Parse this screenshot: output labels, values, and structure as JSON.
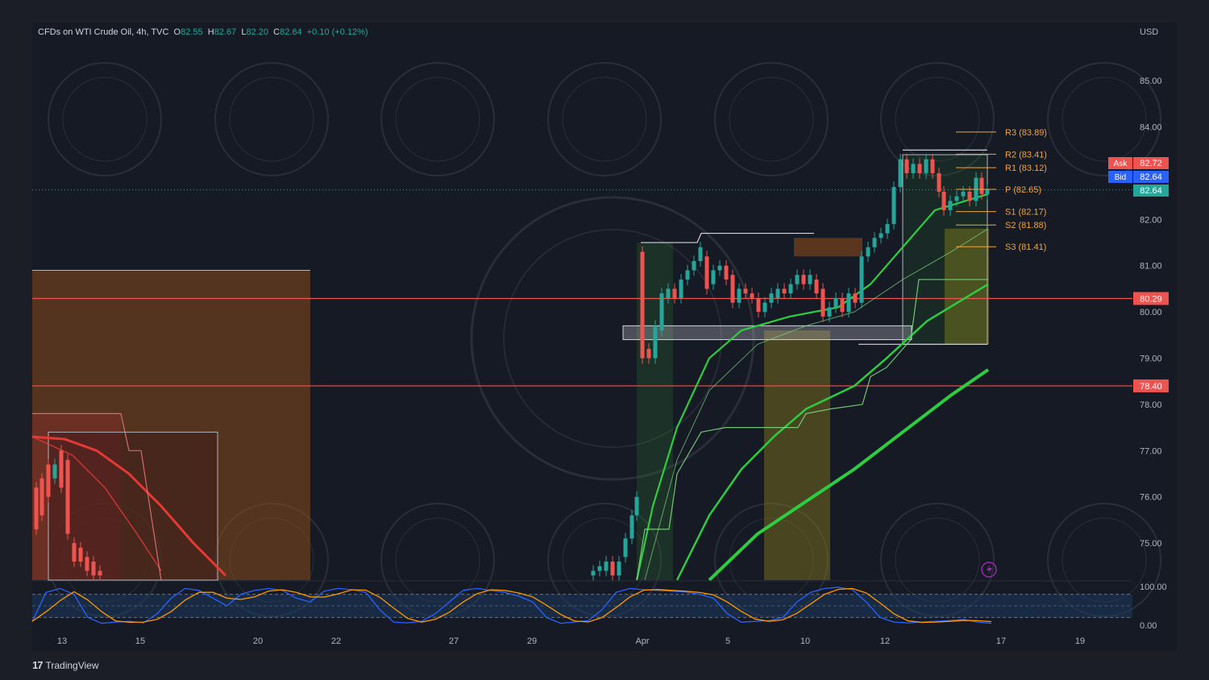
{
  "header": {
    "symbol": "CFDs on WTI Crude Oil, 4h, TVC",
    "open_label": "O",
    "open": "82.55",
    "high_label": "H",
    "high": "82.67",
    "low_label": "L",
    "low": "82.20",
    "close_label": "C",
    "close": "82.64",
    "change": "+0.10 (+0.12%)"
  },
  "currency": "USD",
  "brand": "TradingView",
  "quotes": {
    "ask_label": "Ask",
    "ask": "82.72",
    "bid_label": "Bid",
    "bid": "82.64",
    "last": "82.64"
  },
  "colors": {
    "up": "#26a69a",
    "down": "#ef5350",
    "accent": "#f0a43a",
    "green_ma": "#2ecc40",
    "red_ma": "#e53935"
  },
  "chart_data": {
    "type": "line",
    "ylim": [
      74.2,
      85.7
    ],
    "y_ticks": [
      "85.00",
      "84.00",
      "82.00",
      "81.00",
      "80.00",
      "79.00",
      "78.00",
      "77.00",
      "76.00",
      "75.00"
    ],
    "x_ticks": [
      "13",
      "15",
      "20",
      "22",
      "27",
      "29",
      "Apr",
      "5",
      "10",
      "12",
      "17",
      "19"
    ],
    "pivots": [
      {
        "label": "R3 (83.89)",
        "value": 83.89
      },
      {
        "label": "R2 (83.41)",
        "value": 83.41
      },
      {
        "label": "R1 (83.12)",
        "value": 83.12
      },
      {
        "label": "P (82.65)",
        "value": 82.65
      },
      {
        "label": "S1 (82.17)",
        "value": 82.17
      },
      {
        "label": "S2 (81.88)",
        "value": 81.88
      },
      {
        "label": "S3 (81.41)",
        "value": 81.41
      }
    ],
    "horizontal_levels": [
      "80.29",
      "78.40"
    ],
    "oscillator": {
      "y_ticks": [
        "100.00",
        "0.00"
      ]
    }
  }
}
